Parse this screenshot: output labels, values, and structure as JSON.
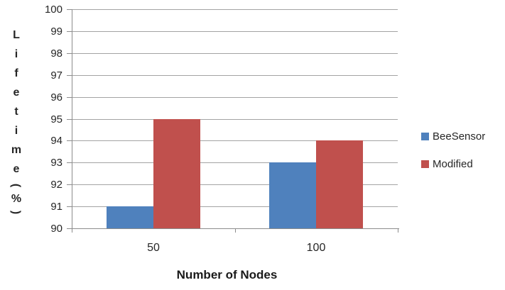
{
  "chart_data": {
    "type": "bar",
    "title": "",
    "xlabel": "Number of Nodes",
    "ylabel": "Lifetime (%)",
    "categories": [
      "50",
      "100"
    ],
    "series": [
      {
        "name": "BeeSensor",
        "color": "#4F81BD",
        "values": [
          91,
          93
        ]
      },
      {
        "name": "Modified",
        "color": "#C0504D",
        "values": [
          95,
          94
        ]
      }
    ],
    "ylim": [
      90,
      100
    ],
    "ytick_step": 1,
    "grid": true,
    "legend_position": "right"
  },
  "colors": {
    "background": "#FFFFFF",
    "gridline": "#A3A3A3",
    "axis": "#8C8C8C",
    "text": "#262626"
  }
}
